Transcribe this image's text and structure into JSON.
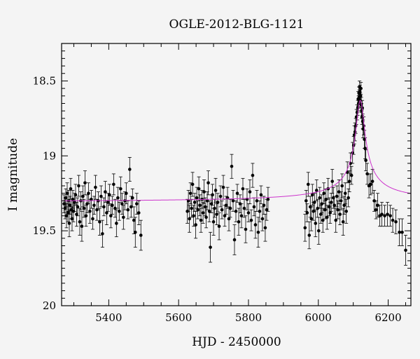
{
  "chart_data": {
    "type": "scatter",
    "title": "OGLE-2012-BLG-1121",
    "xlabel": "HJD - 2450000",
    "ylabel": "I magnitude",
    "xlim": [
      5265,
      6265
    ],
    "ylim": [
      20,
      18.25
    ],
    "y_inverted": true,
    "x_ticks": [
      5400,
      5600,
      5800,
      6000,
      6200
    ],
    "y_ticks": [
      {
        "value": 18.5,
        "label": "18.5"
      },
      {
        "value": 19,
        "label": "19"
      },
      {
        "value": 19.5,
        "label": "19.5"
      },
      {
        "value": 20,
        "label": "20"
      }
    ],
    "grid": false,
    "colors": {
      "points": "#000000",
      "model": "#cc33cc",
      "background": "#f4f4f4"
    },
    "model": {
      "name": "",
      "baseline": 19.31,
      "t0": 6120,
      "peak": 18.63,
      "tE": 16
    },
    "series": [
      {
        "name": "",
        "points": [
          [
            5272,
            19.32,
            0.06
          ],
          [
            5275,
            19.35,
            0.07
          ],
          [
            5277,
            19.28,
            0.06
          ],
          [
            5279,
            19.4,
            0.08
          ],
          [
            5281,
            19.25,
            0.07
          ],
          [
            5283,
            19.38,
            0.06
          ],
          [
            5285,
            19.3,
            0.07
          ],
          [
            5287,
            19.45,
            0.09
          ],
          [
            5289,
            19.33,
            0.06
          ],
          [
            5291,
            19.22,
            0.07
          ],
          [
            5293,
            19.36,
            0.06
          ],
          [
            5295,
            19.42,
            0.08
          ],
          [
            5297,
            19.29,
            0.06
          ],
          [
            5299,
            19.37,
            0.07
          ],
          [
            5302,
            19.31,
            0.06
          ],
          [
            5305,
            19.26,
            0.07
          ],
          [
            5308,
            19.39,
            0.08
          ],
          [
            5311,
            19.34,
            0.06
          ],
          [
            5314,
            19.2,
            0.07
          ],
          [
            5317,
            19.44,
            0.09
          ],
          [
            5320,
            19.3,
            0.06
          ],
          [
            5323,
            19.47,
            0.1
          ],
          [
            5326,
            19.27,
            0.07
          ],
          [
            5329,
            19.35,
            0.06
          ],
          [
            5332,
            19.18,
            0.08
          ],
          [
            5335,
            19.4,
            0.07
          ],
          [
            5338,
            19.32,
            0.06
          ],
          [
            5342,
            19.25,
            0.07
          ],
          [
            5346,
            19.37,
            0.08
          ],
          [
            5350,
            19.29,
            0.06
          ],
          [
            5354,
            19.42,
            0.07
          ],
          [
            5358,
            19.33,
            0.06
          ],
          [
            5362,
            19.21,
            0.08
          ],
          [
            5366,
            19.36,
            0.07
          ],
          [
            5370,
            19.3,
            0.06
          ],
          [
            5374,
            19.44,
            0.09
          ],
          [
            5378,
            19.27,
            0.07
          ],
          [
            5382,
            19.52,
            0.09
          ],
          [
            5386,
            19.34,
            0.06
          ],
          [
            5390,
            19.24,
            0.07
          ],
          [
            5394,
            19.38,
            0.08
          ],
          [
            5398,
            19.31,
            0.06
          ],
          [
            5402,
            19.26,
            0.07
          ],
          [
            5406,
            19.4,
            0.08
          ],
          [
            5410,
            19.33,
            0.06
          ],
          [
            5414,
            19.19,
            0.07
          ],
          [
            5418,
            19.35,
            0.06
          ],
          [
            5422,
            19.45,
            0.09
          ],
          [
            5426,
            19.28,
            0.07
          ],
          [
            5430,
            19.37,
            0.06
          ],
          [
            5434,
            19.22,
            0.08
          ],
          [
            5438,
            19.32,
            0.07
          ],
          [
            5442,
            19.41,
            0.08
          ],
          [
            5446,
            19.3,
            0.06
          ],
          [
            5450,
            19.25,
            0.07
          ],
          [
            5455,
            19.36,
            0.06
          ],
          [
            5460,
            19.09,
            0.08
          ],
          [
            5464,
            19.34,
            0.07
          ],
          [
            5468,
            19.28,
            0.06
          ],
          [
            5472,
            19.43,
            0.09
          ],
          [
            5476,
            19.51,
            0.1
          ],
          [
            5480,
            19.32,
            0.07
          ],
          [
            5486,
            19.38,
            0.08
          ],
          [
            5492,
            19.53,
            0.1
          ],
          [
            5625,
            19.37,
            0.08
          ],
          [
            5628,
            19.3,
            0.07
          ],
          [
            5631,
            19.42,
            0.09
          ],
          [
            5634,
            19.25,
            0.07
          ],
          [
            5637,
            19.35,
            0.06
          ],
          [
            5640,
            19.19,
            0.08
          ],
          [
            5643,
            19.4,
            0.07
          ],
          [
            5646,
            19.31,
            0.06
          ],
          [
            5649,
            19.46,
            0.09
          ],
          [
            5652,
            19.28,
            0.07
          ],
          [
            5655,
            19.36,
            0.06
          ],
          [
            5658,
            19.22,
            0.08
          ],
          [
            5661,
            19.33,
            0.07
          ],
          [
            5664,
            19.43,
            0.08
          ],
          [
            5667,
            19.29,
            0.06
          ],
          [
            5670,
            19.38,
            0.07
          ],
          [
            5673,
            19.24,
            0.08
          ],
          [
            5676,
            19.34,
            0.06
          ],
          [
            5679,
            19.41,
            0.07
          ],
          [
            5682,
            19.3,
            0.06
          ],
          [
            5685,
            19.18,
            0.08
          ],
          [
            5688,
            19.37,
            0.07
          ],
          [
            5691,
            19.61,
            0.1
          ],
          [
            5694,
            19.32,
            0.06
          ],
          [
            5697,
            19.26,
            0.07
          ],
          [
            5700,
            19.44,
            0.09
          ],
          [
            5703,
            19.35,
            0.06
          ],
          [
            5706,
            19.23,
            0.08
          ],
          [
            5709,
            19.39,
            0.07
          ],
          [
            5712,
            19.31,
            0.06
          ],
          [
            5716,
            19.47,
            0.09
          ],
          [
            5720,
            19.27,
            0.07
          ],
          [
            5724,
            19.36,
            0.06
          ],
          [
            5728,
            19.21,
            0.08
          ],
          [
            5732,
            19.4,
            0.07
          ],
          [
            5736,
            19.33,
            0.06
          ],
          [
            5740,
            19.28,
            0.07
          ],
          [
            5744,
            19.42,
            0.08
          ],
          [
            5748,
            19.35,
            0.06
          ],
          [
            5752,
            19.07,
            0.08
          ],
          [
            5756,
            19.3,
            0.07
          ],
          [
            5760,
            19.56,
            0.1
          ],
          [
            5764,
            19.37,
            0.07
          ],
          [
            5768,
            19.25,
            0.06
          ],
          [
            5772,
            19.44,
            0.09
          ],
          [
            5776,
            19.32,
            0.06
          ],
          [
            5780,
            19.4,
            0.08
          ],
          [
            5784,
            19.22,
            0.07
          ],
          [
            5788,
            19.35,
            0.06
          ],
          [
            5792,
            19.49,
            0.09
          ],
          [
            5796,
            19.29,
            0.07
          ],
          [
            5800,
            19.38,
            0.06
          ],
          [
            5804,
            19.24,
            0.08
          ],
          [
            5808,
            19.43,
            0.07
          ],
          [
            5812,
            19.13,
            0.08
          ],
          [
            5816,
            19.34,
            0.06
          ],
          [
            5820,
            19.46,
            0.09
          ],
          [
            5824,
            19.3,
            0.07
          ],
          [
            5828,
            19.51,
            0.1
          ],
          [
            5832,
            19.37,
            0.07
          ],
          [
            5836,
            19.26,
            0.06
          ],
          [
            5840,
            19.42,
            0.08
          ],
          [
            5844,
            19.33,
            0.06
          ],
          [
            5848,
            19.48,
            0.09
          ],
          [
            5852,
            19.36,
            0.07
          ],
          [
            5856,
            19.29,
            0.08
          ],
          [
            5962,
            19.48,
            0.09
          ],
          [
            5965,
            19.3,
            0.07
          ],
          [
            5968,
            19.38,
            0.06
          ],
          [
            5971,
            19.19,
            0.08
          ],
          [
            5974,
            19.53,
            0.09
          ],
          [
            5977,
            19.34,
            0.07
          ],
          [
            5980,
            19.42,
            0.08
          ],
          [
            5983,
            19.26,
            0.07
          ],
          [
            5986,
            19.37,
            0.06
          ],
          [
            5989,
            19.31,
            0.06
          ],
          [
            5992,
            19.45,
            0.09
          ],
          [
            5995,
            19.23,
            0.07
          ],
          [
            5998,
            19.35,
            0.06
          ],
          [
            6001,
            19.5,
            0.09
          ],
          [
            6004,
            19.28,
            0.07
          ],
          [
            6007,
            19.39,
            0.06
          ],
          [
            6010,
            19.32,
            0.06
          ],
          [
            6013,
            19.43,
            0.08
          ],
          [
            6016,
            19.25,
            0.07
          ],
          [
            6019,
            19.36,
            0.06
          ],
          [
            6022,
            19.29,
            0.07
          ],
          [
            6025,
            19.41,
            0.08
          ],
          [
            6028,
            19.22,
            0.07
          ],
          [
            6031,
            19.34,
            0.06
          ],
          [
            6034,
            19.38,
            0.07
          ],
          [
            6037,
            19.31,
            0.06
          ],
          [
            6040,
            19.17,
            0.08
          ],
          [
            6043,
            19.28,
            0.07
          ],
          [
            6046,
            19.33,
            0.06
          ],
          [
            6050,
            19.43,
            0.08
          ],
          [
            6053,
            19.27,
            0.07
          ],
          [
            6056,
            19.36,
            0.06
          ],
          [
            6059,
            19.24,
            0.08
          ],
          [
            6062,
            19.39,
            0.07
          ],
          [
            6065,
            19.3,
            0.06
          ],
          [
            6068,
            19.2,
            0.08
          ],
          [
            6071,
            19.44,
            0.09
          ],
          [
            6074,
            19.33,
            0.06
          ],
          [
            6077,
            19.25,
            0.07
          ],
          [
            6080,
            19.37,
            0.08
          ],
          [
            6083,
            19.11,
            0.07
          ],
          [
            6086,
            19.28,
            0.06
          ],
          [
            6089,
            19.17,
            0.07
          ],
          [
            6092,
            19.05,
            0.07
          ],
          [
            6095,
            19.13,
            0.06
          ],
          [
            6098,
            18.98,
            0.07
          ],
          [
            6101,
            18.93,
            0.06
          ],
          [
            6103,
            18.86,
            0.06
          ],
          [
            6105,
            18.84,
            0.06
          ],
          [
            6107,
            18.8,
            0.05
          ],
          [
            6109,
            18.74,
            0.05
          ],
          [
            6111,
            18.71,
            0.05
          ],
          [
            6113,
            18.68,
            0.05
          ],
          [
            6114,
            18.62,
            0.05
          ],
          [
            6115,
            18.65,
            0.05
          ],
          [
            6116,
            18.58,
            0.04
          ],
          [
            6117,
            18.61,
            0.05
          ],
          [
            6118,
            18.54,
            0.04
          ],
          [
            6119,
            18.57,
            0.04
          ],
          [
            6120,
            18.63,
            0.05
          ],
          [
            6121,
            18.6,
            0.05
          ],
          [
            6122,
            18.55,
            0.04
          ],
          [
            6123,
            18.66,
            0.05
          ],
          [
            6124,
            18.7,
            0.05
          ],
          [
            6125,
            18.74,
            0.05
          ],
          [
            6126,
            18.68,
            0.05
          ],
          [
            6127,
            18.77,
            0.05
          ],
          [
            6128,
            18.82,
            0.06
          ],
          [
            6130,
            18.8,
            0.06
          ],
          [
            6132,
            18.89,
            0.06
          ],
          [
            6134,
            18.95,
            0.07
          ],
          [
            6136,
            19.03,
            0.07
          ],
          [
            6140,
            19.12,
            0.07
          ],
          [
            6145,
            19.2,
            0.08
          ],
          [
            6150,
            19.19,
            0.07
          ],
          [
            6155,
            19.17,
            0.08
          ],
          [
            6160,
            19.3,
            0.07
          ],
          [
            6165,
            19.36,
            0.06
          ],
          [
            6170,
            19.33,
            0.08
          ],
          [
            6176,
            19.4,
            0.07
          ],
          [
            6182,
            19.39,
            0.08
          ],
          [
            6190,
            19.4,
            0.07
          ],
          [
            6198,
            19.39,
            0.08
          ],
          [
            6206,
            19.4,
            0.07
          ],
          [
            6213,
            19.43,
            0.08
          ],
          [
            6222,
            19.44,
            0.08
          ],
          [
            6232,
            19.51,
            0.09
          ],
          [
            6240,
            19.51,
            0.09
          ],
          [
            6250,
            19.63,
            0.1
          ]
        ]
      }
    ]
  }
}
